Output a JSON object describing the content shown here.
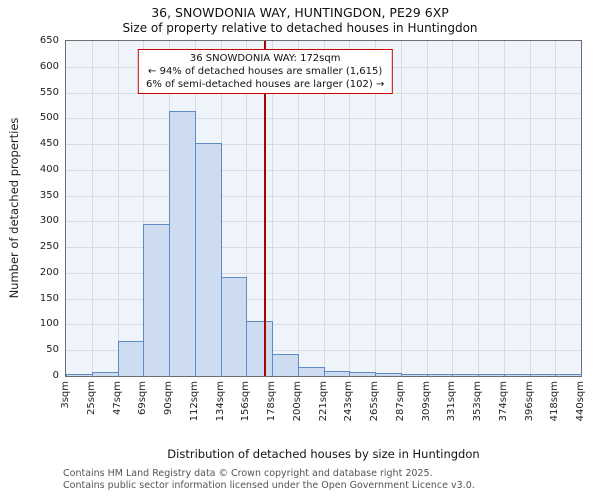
{
  "chart": {
    "title": "36, SNOWDONIA WAY, HUNTINGDON, PE29 6XP",
    "subtitle": "Size of property relative to detached houses in Huntingdon",
    "ylabel": "Number of detached properties",
    "xlabel": "Distribution of detached houses by size in Huntingdon"
  },
  "chart_data": {
    "type": "bar",
    "bin_edges_sqm": [
      3,
      25,
      47,
      69,
      90,
      112,
      134,
      156,
      178,
      200,
      221,
      243,
      265,
      287,
      309,
      331,
      353,
      374,
      396,
      418,
      440
    ],
    "categories": [
      "3sqm",
      "25sqm",
      "47sqm",
      "69sqm",
      "90sqm",
      "112sqm",
      "134sqm",
      "156sqm",
      "178sqm",
      "200sqm",
      "221sqm",
      "243sqm",
      "265sqm",
      "287sqm",
      "309sqm",
      "331sqm",
      "353sqm",
      "374sqm",
      "396sqm",
      "418sqm",
      "440sqm"
    ],
    "values": [
      2,
      8,
      68,
      295,
      515,
      452,
      192,
      107,
      42,
      18,
      10,
      8,
      5,
      3,
      2,
      2,
      1,
      1,
      1,
      2
    ],
    "title": "Size of property relative to detached houses in Huntingdon",
    "xlabel": "Distribution of detached houses by size in Huntingdon",
    "ylabel": "Number of detached properties",
    "ylim": [
      0,
      650
    ],
    "ytick_step": 50,
    "grid": true,
    "legend": false,
    "marker_value_sqm": 172,
    "bar_fill": "#cddcf0",
    "bar_border": "#5f8ac2",
    "marker_color": "#b00000",
    "annotation_border": "#cc0000"
  },
  "annotation": {
    "line1": "36 SNOWDONIA WAY: 172sqm",
    "line2": "← 94% of detached houses are smaller (1,615)",
    "line3": "6% of semi-detached houses are larger (102) →"
  },
  "footer": {
    "line1": "Contains HM Land Registry data © Crown copyright and database right 2025.",
    "line2": "Contains public sector information licensed under the Open Government Licence v3.0."
  }
}
